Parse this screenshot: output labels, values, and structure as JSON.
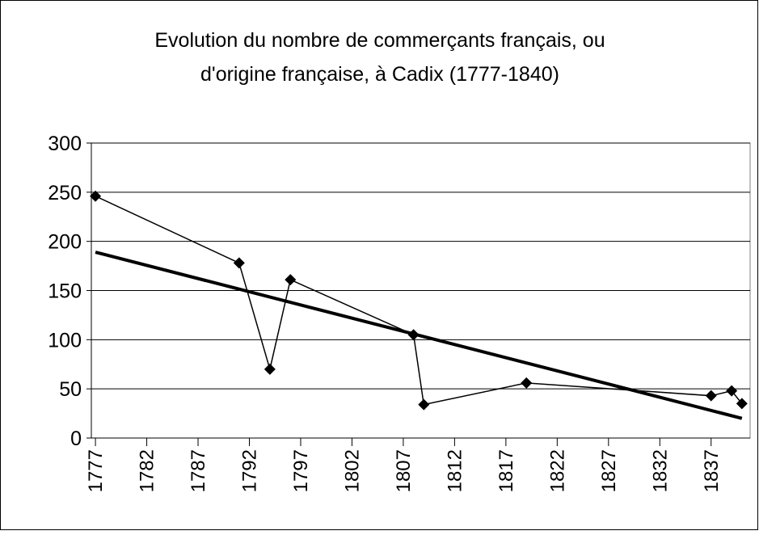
{
  "chart_data": {
    "type": "line",
    "title": [
      "Evolution du nombre de commerçants français, ou",
      "d'origine française, à Cadix (1777-1840)"
    ],
    "x": [
      1777,
      1791,
      1794,
      1796,
      1808,
      1809,
      1819,
      1837,
      1839,
      1840
    ],
    "series": [
      {
        "color": "#000000",
        "values": [
          246,
          178,
          70,
          161,
          105,
          34,
          56,
          43,
          48,
          35
        ]
      }
    ],
    "trendline": {
      "color": "#000000",
      "x": [
        1777,
        1840
      ],
      "values": [
        189,
        20
      ]
    },
    "xlim": [
      1776.6,
      1840.8
    ],
    "xticks": [
      1777,
      1782,
      1787,
      1792,
      1797,
      1802,
      1807,
      1812,
      1817,
      1822,
      1827,
      1832,
      1837
    ],
    "ylim": [
      0,
      300
    ],
    "yticks": [
      0,
      50,
      100,
      150,
      200,
      250,
      300
    ],
    "grid": true
  }
}
